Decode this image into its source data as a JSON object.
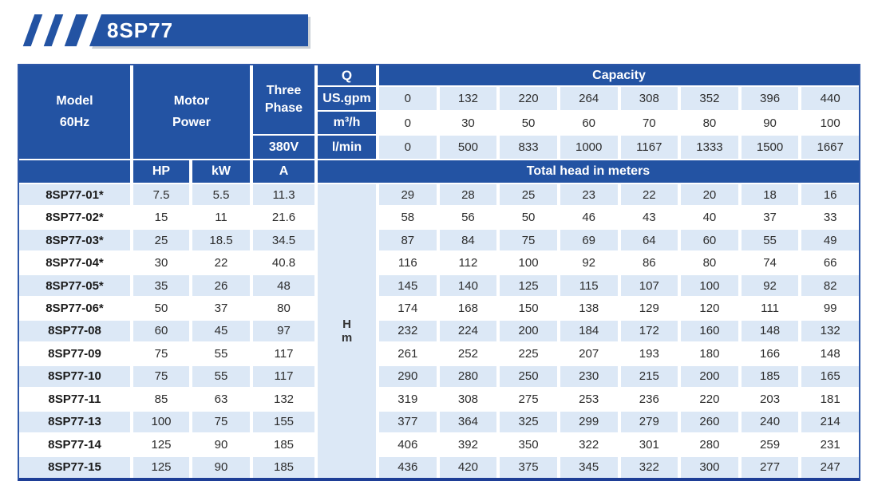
{
  "banner": {
    "title": "8SP77"
  },
  "colors": {
    "brand_blue": "#2353a3",
    "light_row_blue": "#dce8f6",
    "border_navy": "#1e3e96"
  },
  "table": {
    "header": {
      "model_line1": "Model",
      "model_line2": "60Hz",
      "motor_line1": "Motor",
      "motor_line2": "Power",
      "three_phase_line1": "Three",
      "three_phase_line2": "Phase",
      "voltage": "380V",
      "q_label": "Q",
      "capacity_label": "Capacity",
      "hp_label": "HP",
      "kw_label": "kW",
      "amp_label": "A",
      "total_head_label": "Total head in meters",
      "head_unit_line1": "H",
      "head_unit_line2": "m"
    },
    "flow_rows": [
      {
        "unit": "US.gpm",
        "values": [
          "0",
          "132",
          "220",
          "264",
          "308",
          "352",
          "396",
          "440"
        ]
      },
      {
        "unit": "m³/h",
        "values": [
          "0",
          "30",
          "50",
          "60",
          "70",
          "80",
          "90",
          "100"
        ]
      },
      {
        "unit": "l/min",
        "values": [
          "0",
          "500",
          "833",
          "1000",
          "1167",
          "1333",
          "1500",
          "1667"
        ]
      }
    ],
    "rows": [
      {
        "model": "8SP77-01*",
        "hp": "7.5",
        "kw": "5.5",
        "a": "11.3",
        "head": [
          "29",
          "28",
          "25",
          "23",
          "22",
          "20",
          "18",
          "16"
        ]
      },
      {
        "model": "8SP77-02*",
        "hp": "15",
        "kw": "11",
        "a": "21.6",
        "head": [
          "58",
          "56",
          "50",
          "46",
          "43",
          "40",
          "37",
          "33"
        ]
      },
      {
        "model": "8SP77-03*",
        "hp": "25",
        "kw": "18.5",
        "a": "34.5",
        "head": [
          "87",
          "84",
          "75",
          "69",
          "64",
          "60",
          "55",
          "49"
        ]
      },
      {
        "model": "8SP77-04*",
        "hp": "30",
        "kw": "22",
        "a": "40.8",
        "head": [
          "116",
          "112",
          "100",
          "92",
          "86",
          "80",
          "74",
          "66"
        ]
      },
      {
        "model": "8SP77-05*",
        "hp": "35",
        "kw": "26",
        "a": "48",
        "head": [
          "145",
          "140",
          "125",
          "115",
          "107",
          "100",
          "92",
          "82"
        ]
      },
      {
        "model": "8SP77-06*",
        "hp": "50",
        "kw": "37",
        "a": "80",
        "head": [
          "174",
          "168",
          "150",
          "138",
          "129",
          "120",
          "111",
          "99"
        ]
      },
      {
        "model": "8SP77-08",
        "hp": "60",
        "kw": "45",
        "a": "97",
        "head": [
          "232",
          "224",
          "200",
          "184",
          "172",
          "160",
          "148",
          "132"
        ]
      },
      {
        "model": "8SP77-09",
        "hp": "75",
        "kw": "55",
        "a": "117",
        "head": [
          "261",
          "252",
          "225",
          "207",
          "193",
          "180",
          "166",
          "148"
        ]
      },
      {
        "model": "8SP77-10",
        "hp": "75",
        "kw": "55",
        "a": "117",
        "head": [
          "290",
          "280",
          "250",
          "230",
          "215",
          "200",
          "185",
          "165"
        ]
      },
      {
        "model": "8SP77-11",
        "hp": "85",
        "kw": "63",
        "a": "132",
        "head": [
          "319",
          "308",
          "275",
          "253",
          "236",
          "220",
          "203",
          "181"
        ]
      },
      {
        "model": "8SP77-13",
        "hp": "100",
        "kw": "75",
        "a": "155",
        "head": [
          "377",
          "364",
          "325",
          "299",
          "279",
          "260",
          "240",
          "214"
        ]
      },
      {
        "model": "8SP77-14",
        "hp": "125",
        "kw": "90",
        "a": "185",
        "head": [
          "406",
          "392",
          "350",
          "322",
          "301",
          "280",
          "259",
          "231"
        ]
      },
      {
        "model": "8SP77-15",
        "hp": "125",
        "kw": "90",
        "a": "185",
        "head": [
          "436",
          "420",
          "375",
          "345",
          "322",
          "300",
          "277",
          "247"
        ]
      }
    ]
  }
}
